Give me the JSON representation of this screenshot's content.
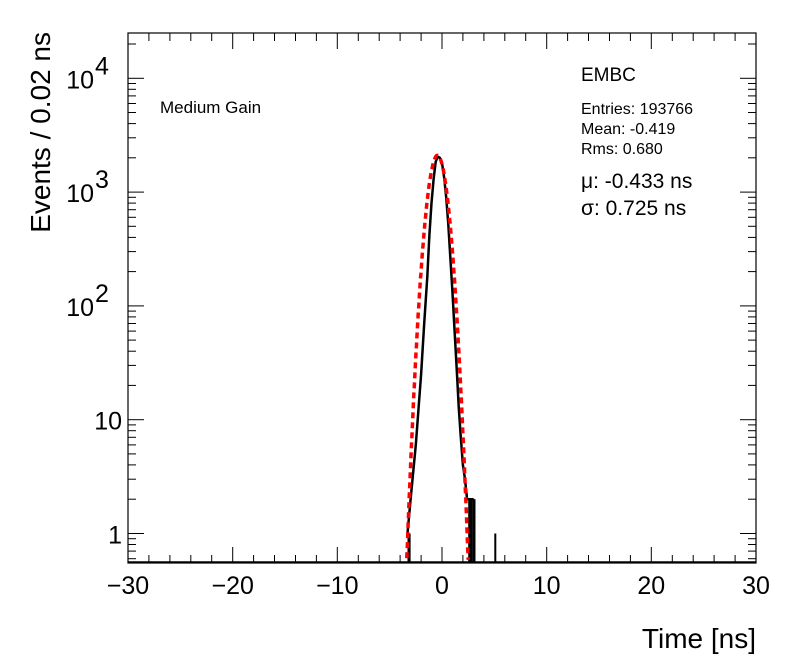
{
  "chart_data": {
    "type": "histogram",
    "xlabel": "Time [ns]",
    "ylabel": "Events / 0.02 ns",
    "xlim": [
      -30,
      30
    ],
    "ylim": [
      0.55,
      25000
    ],
    "yscale": "log",
    "grid": false,
    "x_ticks": [
      -30,
      -20,
      -10,
      0,
      10,
      20,
      30
    ],
    "x_tick_labels": [
      "−30",
      "−20",
      "−10",
      "0",
      "10",
      "20",
      "30"
    ],
    "y_ticks": [
      {
        "value": 1,
        "base": "1",
        "exp": ""
      },
      {
        "value": 10,
        "base": "10",
        "exp": ""
      },
      {
        "value": 100,
        "base": "10",
        "exp": "2"
      },
      {
        "value": 1000,
        "base": "10",
        "exp": "3"
      },
      {
        "value": 10000,
        "base": "10",
        "exp": "4"
      }
    ],
    "gain_label": "Medium Gain",
    "detector": "EMBC",
    "stats": {
      "entries": "Entries: 193766",
      "mean": "Mean: -0.419",
      "rms": "Rms: 0.680"
    },
    "fit": {
      "mu_text": "μ: -0.433 ns",
      "sigma_text": "σ: 0.725 ns",
      "mu": -0.433,
      "sigma": 0.725,
      "amplitude": 2100,
      "color": "#ff0000"
    },
    "histogram": {
      "color": "#000000",
      "points": [
        [
          -3.3,
          1
        ],
        [
          -3.0,
          2
        ],
        [
          -2.5,
          6
        ],
        [
          -2.0,
          25
        ],
        [
          -1.7,
          70
        ],
        [
          -1.4,
          180
        ],
        [
          -1.2,
          420
        ],
        [
          -1.0,
          800
        ],
        [
          -0.8,
          1300
        ],
        [
          -0.6,
          1850
        ],
        [
          -0.4,
          2050
        ],
        [
          -0.2,
          2000
        ],
        [
          0.0,
          1800
        ],
        [
          0.2,
          1350
        ],
        [
          0.4,
          900
        ],
        [
          0.6,
          520
        ],
        [
          0.8,
          260
        ],
        [
          1.0,
          130
        ],
        [
          1.2,
          60
        ],
        [
          1.4,
          28
        ],
        [
          1.6,
          13
        ],
        [
          1.8,
          7
        ],
        [
          2.0,
          4
        ],
        [
          2.2,
          3
        ],
        [
          2.4,
          2
        ],
        [
          2.7,
          2
        ],
        [
          3.0,
          2
        ]
      ],
      "tail_bars": [
        {
          "x": -3.3,
          "w": 0.3,
          "y": 1
        },
        {
          "x": 2.5,
          "w": 0.4,
          "y": 2
        },
        {
          "x": 2.9,
          "w": 0.3,
          "y": 2
        },
        {
          "x": 5.0,
          "w": 0.05,
          "y": 1
        }
      ]
    }
  }
}
